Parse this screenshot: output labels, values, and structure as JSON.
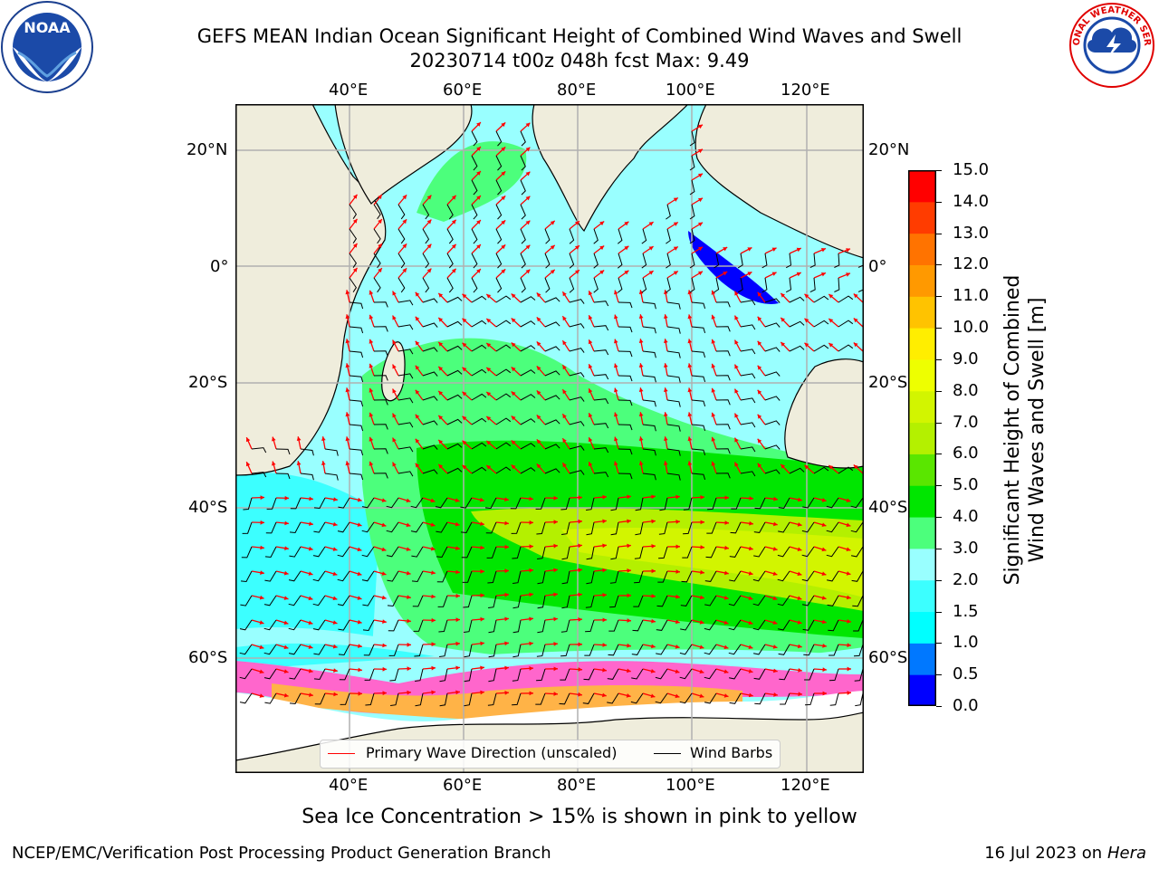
{
  "title": {
    "line1": "GEFS MEAN Indian Ocean Significant Height of Combined Wind Waves and Swell",
    "line2": "20230714 t00z 048h fcst   Max: 9.49"
  },
  "logos": {
    "left": "noara-logo",
    "left_text": "NOAA",
    "right": "nws-logo",
    "right_text": "NATIONAL WEATHER SERVICE"
  },
  "axes": {
    "lon_labels": [
      "40°E",
      "60°E",
      "80°E",
      "100°E",
      "120°E"
    ],
    "lat_labels": [
      "20°N",
      "0°",
      "20°S",
      "40°S",
      "60°S"
    ]
  },
  "legend": {
    "wave_direction": "Primary Wave Direction (unscaled)",
    "wind_barbs": "Wind Barbs",
    "wave_color": "#ff0000",
    "barb_color": "#000000"
  },
  "colorbar": {
    "label_line1": "Significant Height of Combined",
    "label_line2": "Wind Waves and Swell [m]",
    "ticks": [
      "0.0",
      "0.5",
      "1.0",
      "1.5",
      "2.0",
      "3.0",
      "4.0",
      "5.0",
      "6.0",
      "7.0",
      "8.0",
      "9.0",
      "10.0",
      "11.0",
      "12.0",
      "13.0",
      "14.0",
      "15.0"
    ],
    "colors": [
      "#0000ff",
      "#0078ff",
      "#00ffff",
      "#3cffff",
      "#99ffff",
      "#4cff7c",
      "#00e600",
      "#5ae600",
      "#b4f000",
      "#d2f500",
      "#eeff00",
      "#ffee00",
      "#ffc300",
      "#ff9900",
      "#ff7300",
      "#ff3c00",
      "#ff0000"
    ]
  },
  "caption": "Sea Ice Concentration > 15% is shown in pink to yellow",
  "footer": {
    "left": "NCEP/EMC/Verification Post Processing Product Generation Branch",
    "right_date": "16 Jul 2023 on ",
    "right_host": "Hera"
  }
}
